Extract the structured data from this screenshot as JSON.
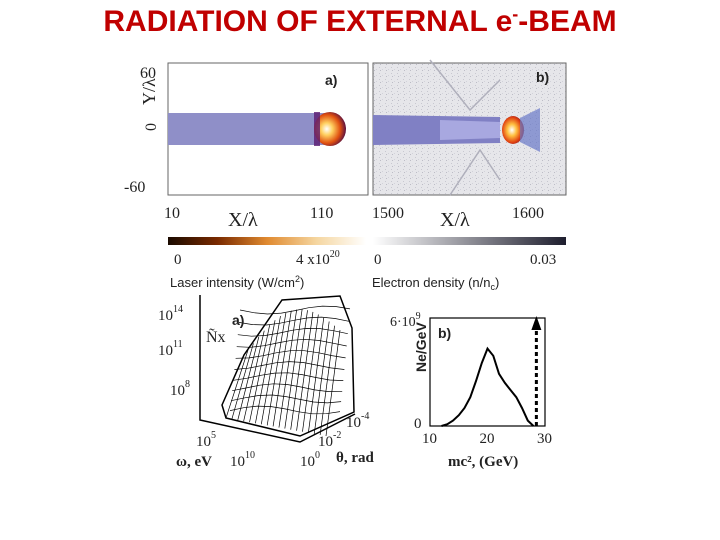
{
  "title": {
    "main": "RADIATION OF EXTERNAL e",
    "sup": "-",
    "tail": "-BEAM"
  },
  "panel_a": {
    "tag": "a)",
    "ylabel": "Y/λ",
    "yticks": [
      "60",
      "0",
      "-60"
    ],
    "xlabel": "X/λ",
    "xticks": [
      "10",
      "110"
    ]
  },
  "panel_b": {
    "tag": "b)",
    "xlabel": "X/λ",
    "xticks": [
      "1500",
      "1600"
    ]
  },
  "colorbar_laser": {
    "min": "0",
    "max": "4 x10",
    "max_sup": "20",
    "label": "Laser intensity (W/cm",
    "label_sup": "2",
    "label_end": ")"
  },
  "colorbar_electron": {
    "min": "0",
    "max": "0.03",
    "label": "Electron density (n/n",
    "label_sub": "c",
    "label_end": ")"
  },
  "plot3d": {
    "tag": "a)",
    "zlabel": "Ñx",
    "zticks": [
      {
        "base": "10",
        "exp": "14"
      },
      {
        "base": "10",
        "exp": "11"
      },
      {
        "base": "10",
        "exp": "8"
      }
    ],
    "omega_ticks": [
      {
        "base": "10",
        "exp": "5"
      },
      {
        "base": "10",
        "exp": "10"
      }
    ],
    "omega_label": "ω, eV",
    "theta_ticks": [
      {
        "base": "10",
        "exp": "-4"
      },
      {
        "base": "10",
        "exp": "-2"
      },
      {
        "base": "10",
        "exp": "0"
      }
    ],
    "theta_label": "θ, rad"
  },
  "spectrum": {
    "tag": "b)",
    "ylabel": "Ne/GeV",
    "ytick_top": "6·10",
    "ytick_top_exp": "9",
    "ytick_zero": "0",
    "xticks": [
      "10",
      "20",
      "30"
    ],
    "xlabel": "mc², (GeV)",
    "chart_data": {
      "type": "line",
      "x": [
        12,
        13,
        14,
        15,
        16,
        17,
        18,
        19,
        20,
        21,
        22,
        23,
        24,
        25,
        26,
        27,
        28
      ],
      "y": [
        0.0,
        0.1,
        0.3,
        0.6,
        1.0,
        1.6,
        2.5,
        3.5,
        4.3,
        3.9,
        2.9,
        2.4,
        2.0,
        1.6,
        1.0,
        0.3,
        0.0
      ],
      "xlim": [
        10,
        30
      ],
      "ylim": [
        0,
        6
      ],
      "marker_x": 28.5
    }
  }
}
